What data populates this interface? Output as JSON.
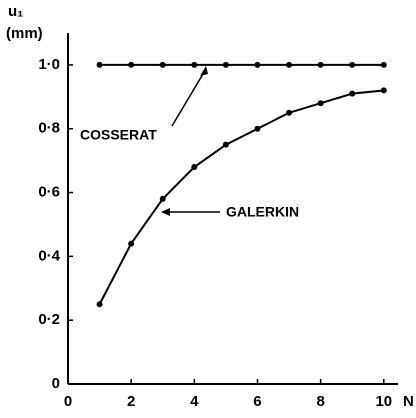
{
  "chart_data": {
    "type": "line",
    "ylabel": [
      "u₁",
      "(mm)"
    ],
    "xlabel": "N",
    "x": [
      1,
      2,
      3,
      4,
      5,
      6,
      7,
      8,
      9,
      10
    ],
    "series": [
      {
        "name": "COSSERAT",
        "color": "#000000",
        "values": [
          1.0,
          1.0,
          1.0,
          1.0,
          1.0,
          1.0,
          1.0,
          1.0,
          1.0,
          1.0
        ]
      },
      {
        "name": "GALERKIN",
        "color": "#000000",
        "values": [
          0.25,
          0.44,
          0.58,
          0.68,
          0.75,
          0.8,
          0.85,
          0.88,
          0.91,
          0.92
        ]
      }
    ],
    "xlim": [
      0,
      10.45
    ],
    "ylim": [
      0,
      1.1
    ],
    "xticks": [
      0,
      2,
      4,
      6,
      8,
      10
    ],
    "yticks": [
      0,
      {
        "value": 0.2,
        "label": "0·2"
      },
      {
        "value": 0.4,
        "label": "0·4"
      },
      {
        "value": 0.6,
        "label": "0·6"
      },
      {
        "value": 0.8,
        "label": "0·8"
      },
      {
        "value": 1.0,
        "label": "1·0"
      }
    ],
    "grid": false
  }
}
